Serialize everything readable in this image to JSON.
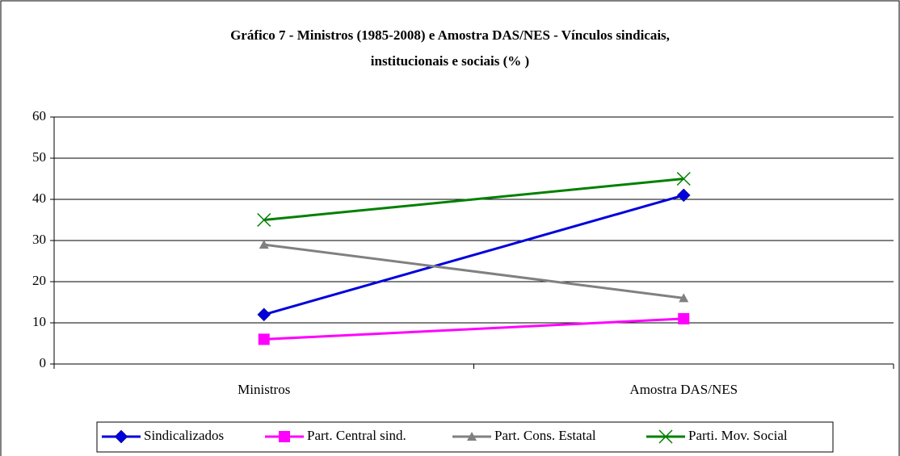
{
  "chart_data": {
    "type": "line",
    "title": [
      "Gráfico 7 - Ministros (1985-2008) e Amostra DAS/NES - Vínculos sindicais,",
      "institucionais e sociais (% )"
    ],
    "categories": [
      "Ministros",
      "Amostra DAS/NES"
    ],
    "series": [
      {
        "name": "Sindicalizados",
        "color": "#0000dd",
        "marker": "diamond",
        "values": [
          12,
          41
        ]
      },
      {
        "name": "Part. Central sind.",
        "color": "#ff00ff",
        "marker": "square",
        "values": [
          6,
          11
        ]
      },
      {
        "name": "Part. Cons. Estatal",
        "color": "#808080",
        "marker": "triangle",
        "values": [
          29,
          16
        ]
      },
      {
        "name": "Parti. Mov. Social",
        "color": "#008000",
        "marker": "x",
        "values": [
          35,
          45
        ]
      }
    ],
    "ylim": [
      0,
      60
    ],
    "yticks": [
      0,
      10,
      20,
      30,
      40,
      50,
      60
    ],
    "grid": true,
    "legend": "bottom"
  }
}
